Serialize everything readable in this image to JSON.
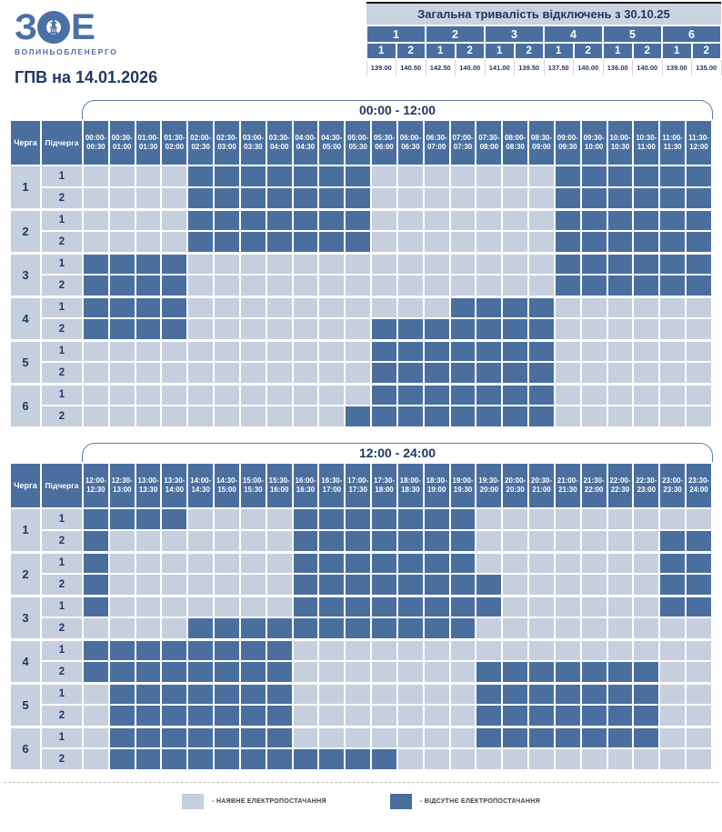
{
  "brand": {
    "logo_text": "ЗОЕ",
    "logo_subtitle": "ВОЛИНЬОБЛЕНЕРГО"
  },
  "page_title": "ГПВ на 14.01.2026",
  "summary": {
    "title": "Загальна тривалість відключень з 30.10.25",
    "queues": [
      "1",
      "2",
      "3",
      "4",
      "5",
      "6"
    ],
    "subqueues": [
      "1",
      "2",
      "1",
      "2",
      "1",
      "2",
      "1",
      "2",
      "1",
      "2",
      "1",
      "2"
    ],
    "values": [
      "139.00",
      "140.50",
      "142.50",
      "140.00",
      "141.00",
      "139.50",
      "137.50",
      "140.00",
      "136.00",
      "140.00",
      "139.00",
      "135.00"
    ]
  },
  "chart_data": [
    {
      "type": "heatmap",
      "title": "00:00 - 12:00",
      "queue_header": "Черга",
      "subqueue_header": "Підчерга",
      "cell_encoding": {
        "0": "наявне електропостачання",
        "1": "відсутнє електропостачання"
      },
      "x_labels": [
        "00:00-00:30",
        "00:30-01:00",
        "01:00-01:30",
        "01:30-02:00",
        "02:00-02:30",
        "02:30-03:00",
        "03:00-03:30",
        "03:30-04:00",
        "04:00-04:30",
        "04:30-05:00",
        "05:00-05:30",
        "05:30-06:00",
        "06:00-06:30",
        "06:30-07:00",
        "07:00-07:30",
        "07:30-08:00",
        "08:00-08:30",
        "08:30-09:00",
        "09:00-09:30",
        "09:30-10:00",
        "10:00-10:30",
        "10:30-11:00",
        "11:00-11:30",
        "11:30-12:00"
      ],
      "rows": [
        {
          "queue": "1",
          "subqueue": "1",
          "pattern": "000011111110000000111111"
        },
        {
          "queue": "1",
          "subqueue": "2",
          "pattern": "000011111110000000111111"
        },
        {
          "queue": "2",
          "subqueue": "1",
          "pattern": "000011111110000000111111"
        },
        {
          "queue": "2",
          "subqueue": "2",
          "pattern": "000011111110000000111111"
        },
        {
          "queue": "3",
          "subqueue": "1",
          "pattern": "111100000000000000111111"
        },
        {
          "queue": "3",
          "subqueue": "2",
          "pattern": "111100000000000000111111"
        },
        {
          "queue": "4",
          "subqueue": "1",
          "pattern": "111100000000001111000000"
        },
        {
          "queue": "4",
          "subqueue": "2",
          "pattern": "111100000001111111000000"
        },
        {
          "queue": "5",
          "subqueue": "1",
          "pattern": "000000000001111111000000"
        },
        {
          "queue": "5",
          "subqueue": "2",
          "pattern": "000000000001111111000000"
        },
        {
          "queue": "6",
          "subqueue": "1",
          "pattern": "000000000001111111000000"
        },
        {
          "queue": "6",
          "subqueue": "2",
          "pattern": "000000000011111111000000"
        }
      ]
    },
    {
      "type": "heatmap",
      "title": "12:00 - 24:00",
      "queue_header": "Черга",
      "subqueue_header": "Підчерга",
      "cell_encoding": {
        "0": "наявне електропостачання",
        "1": "відсутнє електропостачання"
      },
      "x_labels": [
        "12:00-12:30",
        "12:30-13:00",
        "13:00-13:30",
        "13:30-14:00",
        "14:00-14:30",
        "14:30-15:00",
        "15:00-15:30",
        "15:30-16:00",
        "16:00-16:30",
        "16:30-17:00",
        "17:00-17:30",
        "17:30-18:00",
        "18:00-18:30",
        "18:30-19:00",
        "19:00-19:30",
        "19:30-20:00",
        "20:00-20:30",
        "20:30-21:00",
        "21:00-21:30",
        "21:30-22:00",
        "22:00-22:30",
        "22:30-23:00",
        "23:00-23:30",
        "23:30-24:00"
      ],
      "rows": [
        {
          "queue": "1",
          "subqueue": "1",
          "pattern": "111100001111111000000000"
        },
        {
          "queue": "1",
          "subqueue": "2",
          "pattern": "100000001111111000000011"
        },
        {
          "queue": "2",
          "subqueue": "1",
          "pattern": "100000001111111000000011"
        },
        {
          "queue": "2",
          "subqueue": "2",
          "pattern": "100000001111111100000011"
        },
        {
          "queue": "3",
          "subqueue": "1",
          "pattern": "100000001111111100000011"
        },
        {
          "queue": "3",
          "subqueue": "2",
          "pattern": "000011111111111000000000"
        },
        {
          "queue": "4",
          "subqueue": "1",
          "pattern": "111111110000000000000000"
        },
        {
          "queue": "4",
          "subqueue": "2",
          "pattern": "111111110000000111111100"
        },
        {
          "queue": "5",
          "subqueue": "1",
          "pattern": "011111110000000111111100"
        },
        {
          "queue": "5",
          "subqueue": "2",
          "pattern": "011111110000000111111100"
        },
        {
          "queue": "6",
          "subqueue": "1",
          "pattern": "011111110000000111111100"
        },
        {
          "queue": "6",
          "subqueue": "2",
          "pattern": "011111111111000000000000"
        }
      ]
    }
  ],
  "legend": {
    "available": "- НАЯВНЕ ЕЛЕКТРОПОСТАЧАННЯ",
    "absent": "- ВІДСУТНЄ ЕЛЕКТРОПОСТАЧАННЯ"
  },
  "colors": {
    "dark-cell": "#4a6f9f",
    "light-cell": "#c5cfde",
    "header-band": "#cad3e0",
    "navy": "#1f3864",
    "bracket-line": "#5b7ca8",
    "logo-blue": "#4a71a5",
    "legend-text": "#3c3c3c"
  }
}
